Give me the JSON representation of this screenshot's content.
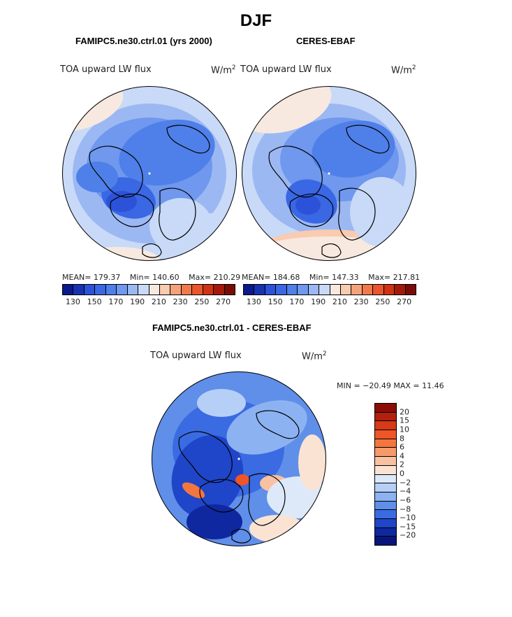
{
  "figure": {
    "title": "DJF"
  },
  "panels": [
    {
      "title": "FAMIPC5.ne30.ctrl.01 (yrs 2000)",
      "variable": "TOA upward LW flux",
      "units_base": "W/m",
      "units_sup": "2",
      "stats": {
        "mean": "MEAN= 179.37",
        "min": "Min= 140.60",
        "max": "Max= 210.29"
      }
    },
    {
      "title": "CERES-EBAF",
      "variable": "TOA upward LW flux",
      "units_base": "W/m",
      "units_sup": "2",
      "stats": {
        "mean": "MEAN= 184.68",
        "min": "Min= 147.33",
        "max": "Max= 217.81"
      }
    },
    {
      "title": "FAMIPC5.ne30.ctrl.01 - CERES-EBAF",
      "variable": "TOA upward LW flux",
      "units_base": "W/m",
      "units_sup": "2",
      "stats": {
        "minmax": "MIN = −20.49 MAX =  11.46"
      }
    }
  ],
  "chart_data": [
    {
      "type": "heatmap",
      "projection": "north polar stereographic",
      "title": "FAMIPC5.ne30.ctrl.01 (yrs 2000)",
      "variable": "TOA upward LW flux",
      "units": "W/m^2",
      "mean": 179.37,
      "min": 140.6,
      "max": 210.29,
      "colorbar_levels": [
        130,
        140,
        150,
        160,
        170,
        180,
        190,
        200,
        210,
        220,
        230,
        240,
        250,
        260,
        270
      ],
      "colorbar_tick_labels": [
        "130",
        "150",
        "170",
        "190",
        "210",
        "230",
        "250",
        "270"
      ],
      "colorbar_colors": [
        "#0a1a8c",
        "#1733b0",
        "#2b52d8",
        "#3a67e3",
        "#4f7fe8",
        "#6f98ee",
        "#9cb8f3",
        "#c8daf8",
        "#f7e9e0",
        "#f9cbb0",
        "#f5a27a",
        "#f07a4c",
        "#e9552c",
        "#cf3313",
        "#a41a0a",
        "#7a0c06"
      ]
    },
    {
      "type": "heatmap",
      "projection": "north polar stereographic",
      "title": "CERES-EBAF",
      "variable": "TOA upward LW flux",
      "units": "W/m^2",
      "mean": 184.68,
      "min": 147.33,
      "max": 217.81,
      "colorbar_levels": [
        130,
        140,
        150,
        160,
        170,
        180,
        190,
        200,
        210,
        220,
        230,
        240,
        250,
        260,
        270
      ],
      "colorbar_tick_labels": [
        "130",
        "150",
        "170",
        "190",
        "210",
        "230",
        "250",
        "270"
      ],
      "colorbar_colors": [
        "#0a1a8c",
        "#1733b0",
        "#2b52d8",
        "#3a67e3",
        "#4f7fe8",
        "#6f98ee",
        "#9cb8f3",
        "#c8daf8",
        "#f7e9e0",
        "#f9cbb0",
        "#f5a27a",
        "#f07a4c",
        "#e9552c",
        "#cf3313",
        "#a41a0a",
        "#7a0c06"
      ]
    },
    {
      "type": "heatmap",
      "projection": "north polar stereographic",
      "title": "FAMIPC5.ne30.ctrl.01 - CERES-EBAF",
      "variable": "TOA upward LW flux",
      "units": "W/m^2",
      "min": -20.49,
      "max": 11.46,
      "colorbar_levels": [
        20,
        15,
        10,
        8,
        6,
        4,
        2,
        0,
        -2,
        -4,
        -6,
        -8,
        -10,
        -15,
        -20
      ],
      "colorbar_tick_labels": [
        "20",
        "15",
        "10",
        "8",
        "6",
        "4",
        "2",
        "0",
        "−2",
        "−4",
        "−6",
        "−8",
        "−10",
        "−15",
        "−20"
      ],
      "colorbar_colors": [
        "#8b0d05",
        "#b3200d",
        "#d63a16",
        "#ef5528",
        "#f4763f",
        "#f59a6a",
        "#f8c1a0",
        "#fae3d3",
        "#dde9f9",
        "#b6cff7",
        "#8cb2f1",
        "#5f8fe9",
        "#3a6be2",
        "#1f45c9",
        "#0f28a0",
        "#07157c"
      ]
    }
  ]
}
